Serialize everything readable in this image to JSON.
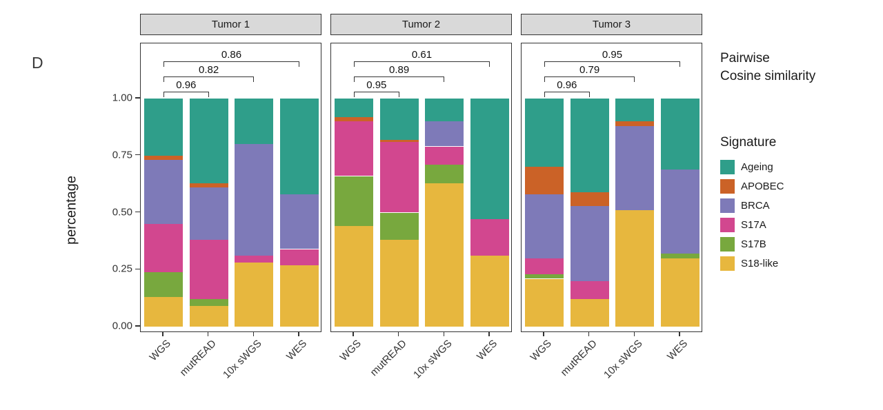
{
  "figure_label": "D",
  "annotation": {
    "line1": "Pairwise",
    "line2": "Cosine similarity"
  },
  "legend": {
    "title": "Signature",
    "items": [
      {
        "label": "Ageing",
        "color": "#2f9e8a"
      },
      {
        "label": "APOBEC",
        "color": "#cb6227"
      },
      {
        "label": "BRCA",
        "color": "#7e7ab8"
      },
      {
        "label": "S17A",
        "color": "#d2478f"
      },
      {
        "label": "S17B",
        "color": "#78a83e"
      },
      {
        "label": "S18-like",
        "color": "#e7b73e"
      }
    ]
  },
  "chart_data": {
    "type": "bar",
    "stacked": true,
    "ylabel": "percentage",
    "ylim": [
      0,
      1
    ],
    "yticks": [
      "0.00",
      "0.25",
      "0.50",
      "0.75",
      "1.00"
    ],
    "categories": [
      "WGS",
      "mutREAD",
      "10x sWGS",
      "WES"
    ],
    "stack_order_bottom_to_top": [
      "S18-like",
      "S17B",
      "S17A",
      "BRCA",
      "APOBEC",
      "Ageing"
    ],
    "legend_position": "right",
    "facets": [
      {
        "title": "Tumor 1",
        "series": [
          {
            "name": "S18-like",
            "values": [
              0.13,
              0.09,
              0.28,
              0.27
            ]
          },
          {
            "name": "S17B",
            "values": [
              0.11,
              0.03,
              0.0,
              0.0
            ]
          },
          {
            "name": "S17A",
            "values": [
              0.21,
              0.26,
              0.03,
              0.07
            ]
          },
          {
            "name": "BRCA",
            "values": [
              0.28,
              0.23,
              0.49,
              0.24
            ]
          },
          {
            "name": "APOBEC",
            "values": [
              0.02,
              0.02,
              0.0,
              0.0
            ]
          },
          {
            "name": "Ageing",
            "values": [
              0.25,
              0.37,
              0.2,
              0.42
            ]
          }
        ],
        "cosine_brackets": [
          {
            "from": "WGS",
            "to": "mutREAD",
            "value": "0.96"
          },
          {
            "from": "WGS",
            "to": "10x sWGS",
            "value": "0.82"
          },
          {
            "from": "WGS",
            "to": "WES",
            "value": "0.86"
          }
        ]
      },
      {
        "title": "Tumor 2",
        "series": [
          {
            "name": "S18-like",
            "values": [
              0.44,
              0.38,
              0.63,
              0.31
            ]
          },
          {
            "name": "S17B",
            "values": [
              0.22,
              0.12,
              0.08,
              0.0
            ]
          },
          {
            "name": "S17A",
            "values": [
              0.24,
              0.31,
              0.08,
              0.16
            ]
          },
          {
            "name": "BRCA",
            "values": [
              0.0,
              0.0,
              0.11,
              0.0
            ]
          },
          {
            "name": "APOBEC",
            "values": [
              0.02,
              0.01,
              0.0,
              0.0
            ]
          },
          {
            "name": "Ageing",
            "values": [
              0.08,
              0.18,
              0.1,
              0.53
            ]
          }
        ],
        "cosine_brackets": [
          {
            "from": "WGS",
            "to": "mutREAD",
            "value": "0.95"
          },
          {
            "from": "WGS",
            "to": "10x sWGS",
            "value": "0.89"
          },
          {
            "from": "WGS",
            "to": "WES",
            "value": "0.61"
          }
        ]
      },
      {
        "title": "Tumor 3",
        "series": [
          {
            "name": "S18-like",
            "values": [
              0.21,
              0.12,
              0.51,
              0.3
            ]
          },
          {
            "name": "S17B",
            "values": [
              0.02,
              0.0,
              0.0,
              0.02
            ]
          },
          {
            "name": "S17A",
            "values": [
              0.07,
              0.08,
              0.0,
              0.0
            ]
          },
          {
            "name": "BRCA",
            "values": [
              0.28,
              0.33,
              0.37,
              0.37
            ]
          },
          {
            "name": "APOBEC",
            "values": [
              0.12,
              0.06,
              0.02,
              0.0
            ]
          },
          {
            "name": "Ageing",
            "values": [
              0.3,
              0.41,
              0.1,
              0.31
            ]
          }
        ],
        "cosine_brackets": [
          {
            "from": "WGS",
            "to": "mutREAD",
            "value": "0.96"
          },
          {
            "from": "WGS",
            "to": "10x sWGS",
            "value": "0.79"
          },
          {
            "from": "WGS",
            "to": "WES",
            "value": "0.95"
          }
        ]
      }
    ]
  }
}
